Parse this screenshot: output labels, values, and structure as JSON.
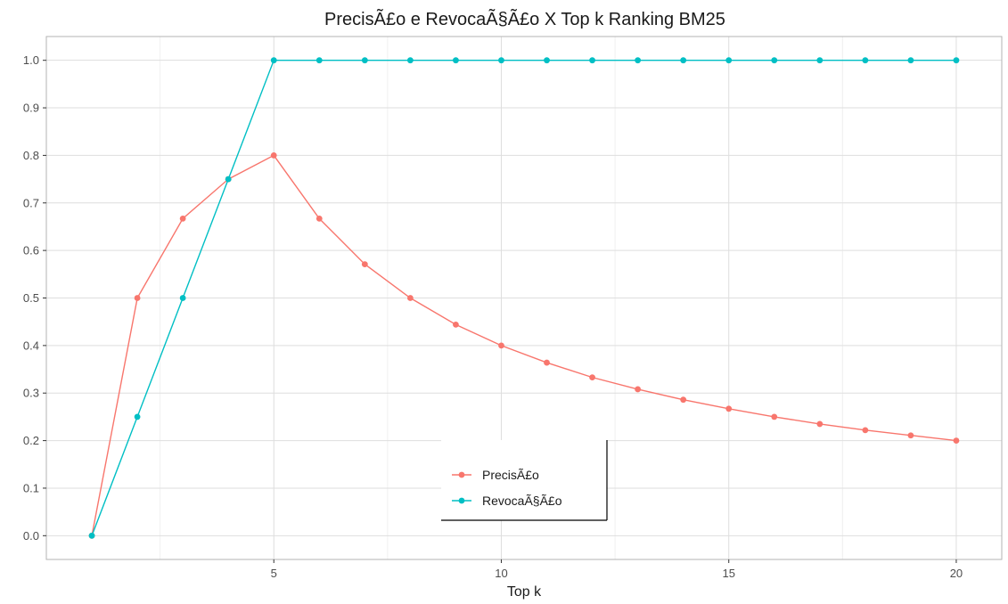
{
  "chart_data": {
    "type": "line",
    "title": "PrecisÃ£o e RevocaÃ§Ã£o X Top k Ranking BM25",
    "xlabel": "Top k",
    "ylabel": "",
    "xlim": [
      0.0,
      21.0
    ],
    "ylim": [
      -0.05,
      1.05
    ],
    "x_ticks": [
      5,
      10,
      15,
      20
    ],
    "y_ticks": [
      0.0,
      0.1,
      0.2,
      0.3,
      0.4,
      0.5,
      0.6,
      0.7,
      0.8,
      0.9,
      1.0
    ],
    "grid": true,
    "legend_position": "bottom-center",
    "x": [
      1,
      2,
      3,
      4,
      5,
      6,
      7,
      8,
      9,
      10,
      11,
      12,
      13,
      14,
      15,
      16,
      17,
      18,
      19,
      20
    ],
    "series": [
      {
        "name": "PrecisÃ£o",
        "color": "#F8766D",
        "values": [
          0.0,
          0.5,
          0.667,
          0.75,
          0.8,
          0.667,
          0.571,
          0.5,
          0.444,
          0.4,
          0.364,
          0.333,
          0.308,
          0.286,
          0.267,
          0.25,
          0.235,
          0.222,
          0.211,
          0.2
        ]
      },
      {
        "name": "RevocaÃ§Ã£o",
        "color": "#00BFC4",
        "values": [
          0.0,
          0.25,
          0.5,
          0.75,
          1.0,
          1.0,
          1.0,
          1.0,
          1.0,
          1.0,
          1.0,
          1.0,
          1.0,
          1.0,
          1.0,
          1.0,
          1.0,
          1.0,
          1.0,
          1.0
        ]
      }
    ]
  }
}
